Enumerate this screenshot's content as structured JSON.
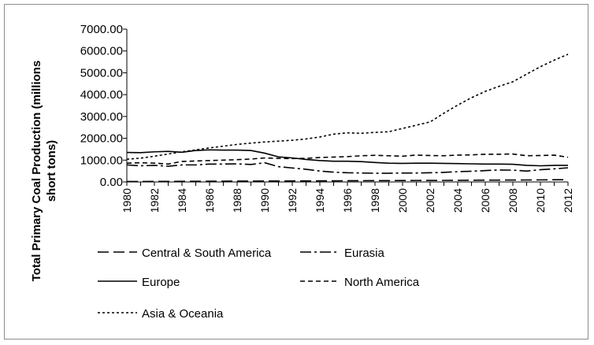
{
  "chart_data": {
    "type": "line",
    "title": "",
    "xlabel": "",
    "ylabel": "Total Primary Coal Production (millions short tons)",
    "ylim": [
      0,
      7000
    ],
    "y_ticks": [
      "0.00",
      "1000.00",
      "2000.00",
      "3000.00",
      "4000.00",
      "5000.00",
      "6000.00",
      "7000.00"
    ],
    "x_ticks": [
      "1980",
      "1982",
      "1984",
      "1986",
      "1988",
      "1990",
      "1992",
      "1994",
      "1996",
      "1998",
      "2000",
      "2002",
      "2004",
      "2006",
      "2008",
      "2010",
      "2012"
    ],
    "x": [
      1980,
      1981,
      1982,
      1983,
      1984,
      1985,
      1986,
      1987,
      1988,
      1989,
      1990,
      1991,
      1992,
      1993,
      1994,
      1995,
      1996,
      1997,
      1998,
      1999,
      2000,
      2001,
      2002,
      2003,
      2004,
      2005,
      2006,
      2007,
      2008,
      2009,
      2010,
      2011,
      2012
    ],
    "grid": false,
    "legend_position": "bottom",
    "series": [
      {
        "name": "Central & South America",
        "dash": "long-dash",
        "values": [
          20,
          22,
          24,
          25,
          28,
          30,
          32,
          35,
          38,
          40,
          42,
          44,
          46,
          48,
          50,
          52,
          55,
          58,
          60,
          62,
          65,
          68,
          70,
          72,
          75,
          78,
          82,
          85,
          88,
          90,
          95,
          100,
          105
        ]
      },
      {
        "name": "Eurasia",
        "dash": "dash-dot",
        "values": [
          780,
          740,
          760,
          720,
          780,
          780,
          820,
          820,
          830,
          800,
          880,
          700,
          640,
          580,
          500,
          450,
          420,
          410,
          400,
          400,
          410,
          410,
          420,
          440,
          470,
          490,
          520,
          550,
          540,
          500,
          560,
          600,
          650
        ]
      },
      {
        "name": "Europe",
        "dash": "solid",
        "values": [
          1350,
          1340,
          1380,
          1400,
          1360,
          1440,
          1470,
          1460,
          1460,
          1440,
          1320,
          1150,
          1100,
          1030,
          980,
          950,
          950,
          930,
          890,
          860,
          850,
          860,
          860,
          850,
          840,
          830,
          820,
          820,
          810,
          760,
          740,
          760,
          760
        ]
      },
      {
        "name": "North America",
        "dash": "short-dash",
        "values": [
          860,
          880,
          860,
          820,
          940,
          960,
          980,
          1000,
          1020,
          1050,
          1100,
          1080,
          1070,
          1080,
          1120,
          1140,
          1160,
          1200,
          1220,
          1200,
          1180,
          1230,
          1210,
          1200,
          1230,
          1240,
          1270,
          1270,
          1280,
          1200,
          1210,
          1230,
          1130
        ]
      },
      {
        "name": "Asia & Oceania",
        "dash": "dotted",
        "values": [
          1040,
          1090,
          1180,
          1280,
          1380,
          1470,
          1560,
          1640,
          1720,
          1780,
          1830,
          1870,
          1910,
          1970,
          2060,
          2190,
          2250,
          2230,
          2270,
          2300,
          2450,
          2600,
          2750,
          3150,
          3520,
          3860,
          4150,
          4380,
          4590,
          4940,
          5280,
          5580,
          5850
        ]
      }
    ]
  }
}
